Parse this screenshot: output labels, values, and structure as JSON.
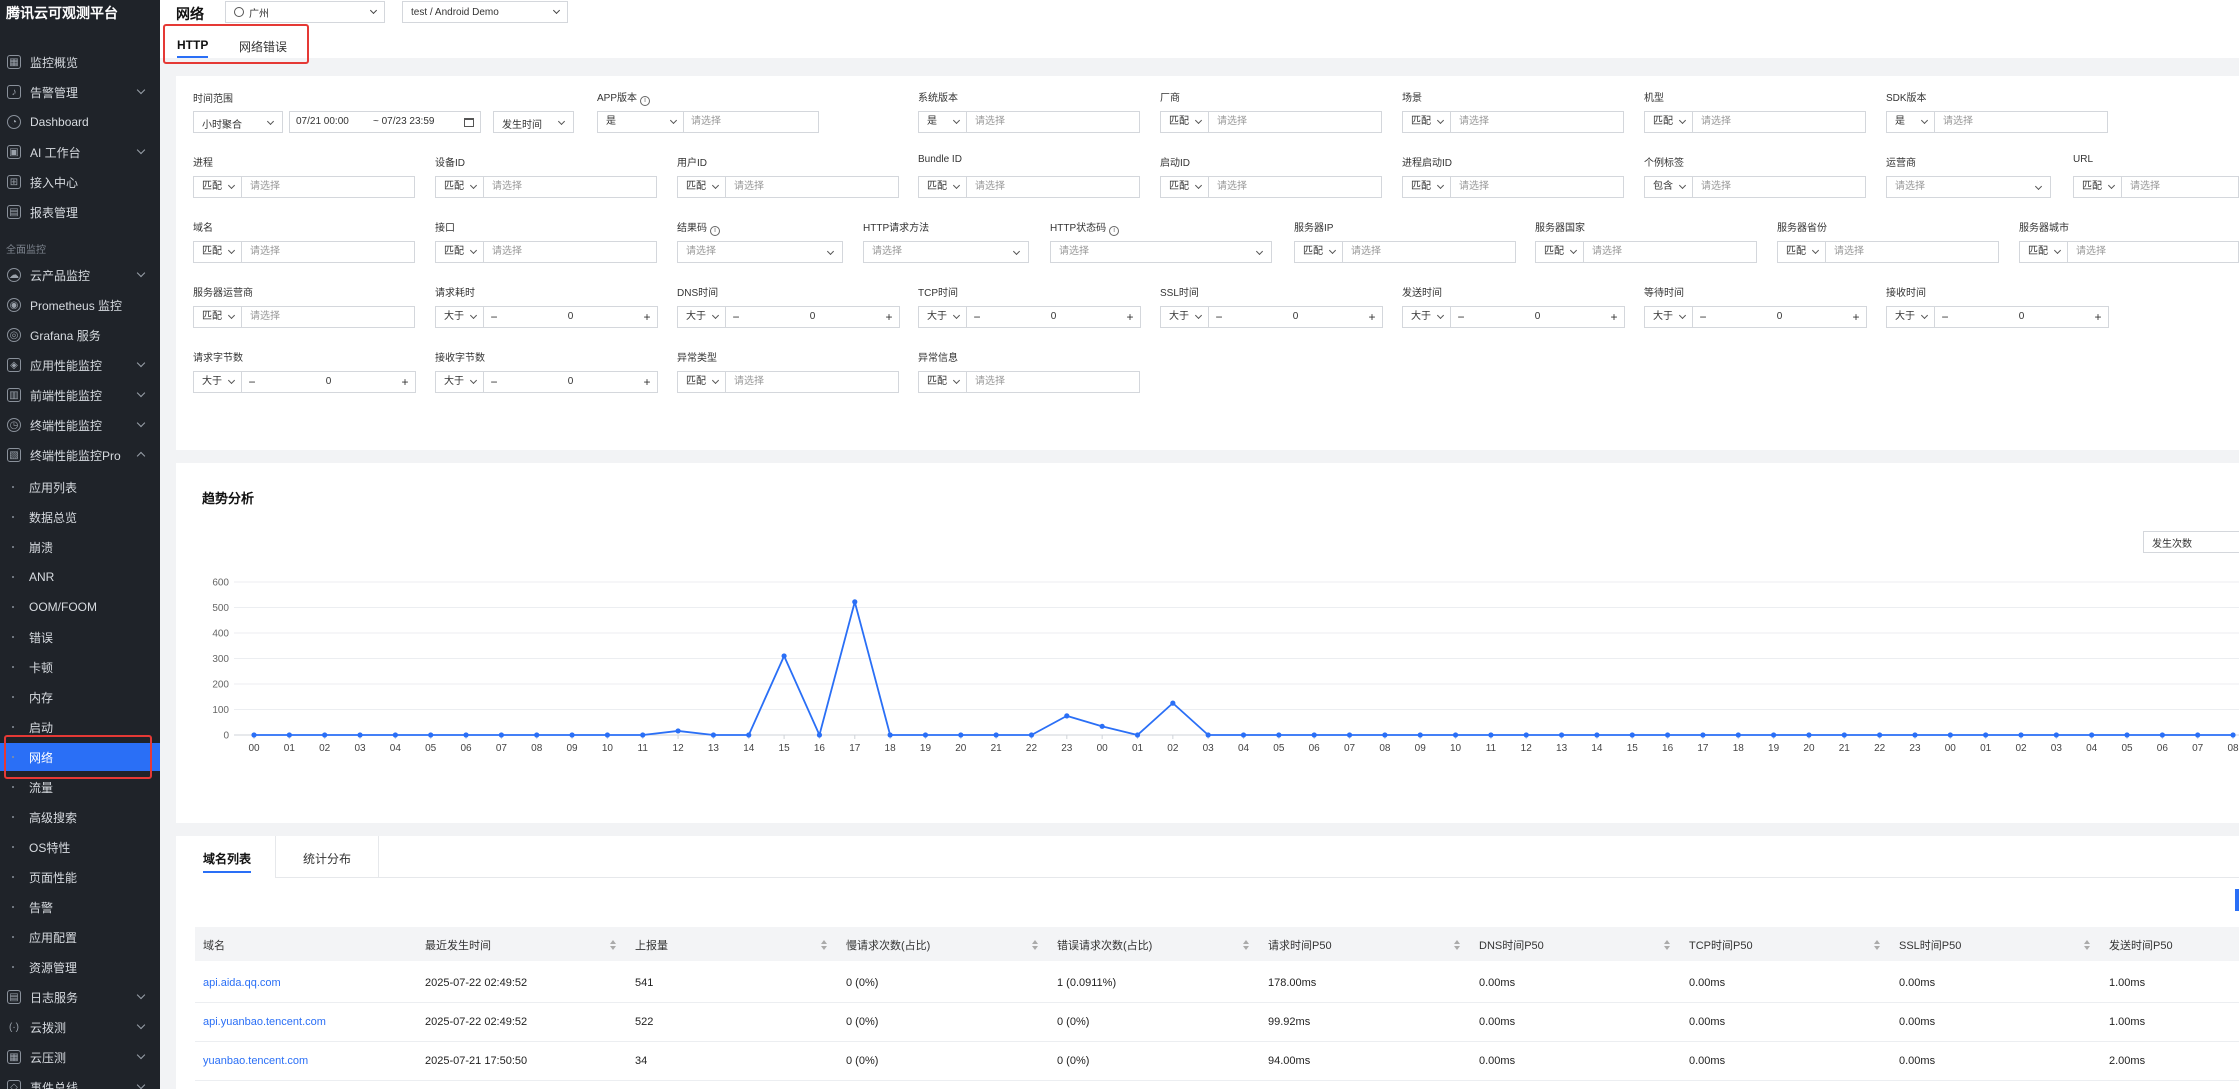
{
  "sidebar": {
    "brand": "腾讯云可观测平台",
    "top_items": [
      {
        "label": "监控概览",
        "icon": "grid-icon",
        "chevron": false
      },
      {
        "label": "告警管理",
        "icon": "bell-icon",
        "chevron": true
      },
      {
        "label": "Dashboard",
        "icon": "dashboard-icon",
        "chevron": false
      },
      {
        "label": "AI 工作台",
        "icon": "ai-icon",
        "chevron": true
      },
      {
        "label": "接入中心",
        "icon": "plug-icon",
        "chevron": false
      },
      {
        "label": "报表管理",
        "icon": "report-icon",
        "chevron": false
      }
    ],
    "group_label": "全面监控",
    "group_items": [
      {
        "label": "云产品监控",
        "icon": "cloud-icon",
        "chevron": true
      },
      {
        "label": "Prometheus 监控",
        "icon": "prometheus-icon",
        "chevron": false
      },
      {
        "label": "Grafana 服务",
        "icon": "grafana-icon",
        "chevron": false
      },
      {
        "label": "应用性能监控",
        "icon": "apm-icon",
        "chevron": true
      },
      {
        "label": "前端性能监控",
        "icon": "frontend-icon",
        "chevron": true
      },
      {
        "label": "终端性能监控",
        "icon": "terminal-icon",
        "chevron": true
      },
      {
        "label": "终端性能监控Pro",
        "icon": "terminal-pro-icon",
        "chevron": true,
        "expanded": true
      }
    ],
    "sub_items": [
      "应用列表",
      "数据总览",
      "崩溃",
      "ANR",
      "OOM/FOOM",
      "错误",
      "卡顿",
      "内存",
      "启动",
      "网络",
      "流量",
      "高级搜索",
      "OS特性",
      "页面性能",
      "告警",
      "应用配置",
      "资源管理"
    ],
    "active_sub": "网络",
    "bottom_items": [
      {
        "label": "日志服务",
        "icon": "log-icon",
        "chevron": true
      },
      {
        "label": "云拨测",
        "icon": "probe-icon",
        "chevron": true
      },
      {
        "label": "云压测",
        "icon": "pressure-icon",
        "chevron": true
      },
      {
        "label": "事件总线",
        "icon": "event-icon",
        "chevron": true
      }
    ]
  },
  "header": {
    "title": "网络",
    "region": "广州",
    "app": "test / Android Demo",
    "tabs": [
      "HTTP",
      "网络错误"
    ],
    "active_tab": "HTTP"
  },
  "filters": {
    "time_range": {
      "label": "时间范围",
      "granularity": "小时聚合",
      "start": "07/21 00:00",
      "end": "~ 07/23 23:59",
      "time_type": "发生时间"
    },
    "app_version": {
      "label": "APP版本",
      "op": "是",
      "placeholder": "请选择"
    },
    "os_version": {
      "label": "系统版本",
      "op": "是",
      "placeholder": "请选择"
    },
    "vendor": {
      "label": "厂商",
      "op": "匹配",
      "placeholder": "请选择"
    },
    "scene": {
      "label": "场景",
      "op": "匹配",
      "placeholder": "请选择"
    },
    "model": {
      "label": "机型",
      "op": "匹配",
      "placeholder": "请选择"
    },
    "sdk_version": {
      "label": "SDK版本",
      "op": "是",
      "placeholder": "请选择"
    },
    "process": {
      "label": "进程",
      "op": "匹配",
      "placeholder": "请选择"
    },
    "device_id": {
      "label": "设备ID",
      "op": "匹配",
      "placeholder": "请选择"
    },
    "user_id": {
      "label": "用户ID",
      "op": "匹配",
      "placeholder": "请选择"
    },
    "bundle_id": {
      "label": "Bundle ID",
      "op": "匹配",
      "placeholder": "请选择"
    },
    "launch_id": {
      "label": "启动ID",
      "op": "匹配",
      "placeholder": "请选择"
    },
    "process_launch_id": {
      "label": "进程启动ID",
      "op": "匹配",
      "placeholder": "请选择"
    },
    "custom_tag": {
      "label": "个例标签",
      "op": "包含",
      "placeholder": "请选择"
    },
    "carrier": {
      "label": "运营商",
      "placeholder": "请选择"
    },
    "url": {
      "label": "URL",
      "op": "匹配",
      "placeholder": "请选择"
    },
    "domain": {
      "label": "域名",
      "op": "匹配",
      "placeholder": "请选择"
    },
    "api": {
      "label": "接口",
      "op": "匹配",
      "placeholder": "请选择"
    },
    "result_code": {
      "label": "结果码",
      "placeholder": "请选择"
    },
    "http_method": {
      "label": "HTTP请求方法",
      "placeholder": "请选择"
    },
    "http_status": {
      "label": "HTTP状态码",
      "placeholder": "请选择"
    },
    "server_ip": {
      "label": "服务器IP",
      "op": "匹配",
      "placeholder": "请选择"
    },
    "server_country": {
      "label": "服务器国家",
      "op": "匹配",
      "placeholder": "请选择"
    },
    "server_province": {
      "label": "服务器省份",
      "op": "匹配",
      "placeholder": "请选择"
    },
    "server_city": {
      "label": "服务器城市",
      "op": "匹配",
      "placeholder": "请选择"
    },
    "server_isp": {
      "label": "服务器运营商",
      "op": "匹配",
      "placeholder": "请选择"
    },
    "request_time": {
      "label": "请求耗时",
      "op": "大于",
      "value": "0"
    },
    "dns_time": {
      "label": "DNS时间",
      "op": "大于",
      "value": "0"
    },
    "tcp_time": {
      "label": "TCP时间",
      "op": "大于",
      "value": "0"
    },
    "ssl_time": {
      "label": "SSL时间",
      "op": "大于",
      "value": "0"
    },
    "send_time": {
      "label": "发送时间",
      "op": "大于",
      "value": "0"
    },
    "wait_time": {
      "label": "等待时间",
      "op": "大于",
      "value": "0"
    },
    "receive_time": {
      "label": "接收时间",
      "op": "大于",
      "value": "0"
    },
    "request_bytes": {
      "label": "请求字节数",
      "op": "大于",
      "value": "0"
    },
    "response_bytes": {
      "label": "接收字节数",
      "op": "大于",
      "value": "0"
    },
    "exception_type": {
      "label": "异常类型",
      "op": "匹配",
      "placeholder": "请选择"
    },
    "exception_info": {
      "label": "异常信息",
      "op": "匹配",
      "placeholder": "请选择"
    }
  },
  "trend": {
    "title": "趋势分析",
    "metric_select": "发生次数"
  },
  "chart_data": {
    "type": "line",
    "title": "趋势分析",
    "xlabel": "",
    "ylabel": "",
    "ylim": [
      0,
      600
    ],
    "yticks": [
      0,
      100,
      200,
      300,
      400,
      500,
      600
    ],
    "grid": true,
    "categories": [
      "00",
      "01",
      "02",
      "03",
      "04",
      "05",
      "06",
      "07",
      "08",
      "09",
      "10",
      "11",
      "12",
      "13",
      "14",
      "15",
      "16",
      "17",
      "18",
      "19",
      "20",
      "21",
      "22",
      "23",
      "00",
      "01",
      "02",
      "03",
      "04",
      "05",
      "06",
      "07",
      "08",
      "09",
      "10",
      "11",
      "12",
      "13",
      "14",
      "15",
      "16",
      "17",
      "18",
      "19",
      "20",
      "21",
      "22",
      "23",
      "00",
      "01",
      "02",
      "03",
      "04",
      "05",
      "06",
      "07",
      "08"
    ],
    "series": [
      {
        "color": "#2a6ff6",
        "values": [
          0,
          0,
          0,
          0,
          0,
          0,
          0,
          0,
          0,
          0,
          0,
          0,
          16,
          0,
          0,
          310,
          0,
          522,
          0,
          0,
          0,
          0,
          0,
          75,
          34,
          0,
          125,
          0,
          0,
          0,
          0,
          0,
          0,
          0,
          0,
          0,
          0,
          0,
          0,
          0,
          0,
          0,
          0,
          0,
          0,
          0,
          0,
          0,
          0,
          0,
          0,
          0,
          0,
          0,
          0,
          0,
          0
        ]
      }
    ]
  },
  "domain_list": {
    "tabs": [
      "域名列表",
      "统计分布"
    ],
    "active_tab": "域名列表",
    "columns": [
      "域名",
      "最近发生时间",
      "上报量",
      "慢请求次数(占比)",
      "错误请求次数(占比)",
      "请求时间P50",
      "DNS时间P50",
      "TCP时间P50",
      "SSL时间P50",
      "发送时间P50"
    ],
    "rows": [
      [
        "api.aida.qq.com",
        "2025-07-22 02:49:52",
        "541",
        "0  (0%)",
        "1  (0.0911%)",
        "178.00ms",
        "0.00ms",
        "0.00ms",
        "0.00ms",
        "1.00ms"
      ],
      [
        "api.yuanbao.tencent.com",
        "2025-07-22 02:49:52",
        "522",
        "0  (0%)",
        "0  (0%)",
        "99.92ms",
        "0.00ms",
        "0.00ms",
        "0.00ms",
        "1.00ms"
      ],
      [
        "yuanbao.tencent.com",
        "2025-07-21 17:50:50",
        "34",
        "0  (0%)",
        "0  (0%)",
        "94.00ms",
        "0.00ms",
        "0.00ms",
        "0.00ms",
        "2.00ms"
      ]
    ]
  },
  "colors": {
    "accent": "#2a6ff6",
    "highlight": "#e53935",
    "sidebar_bg": "#1f2329"
  }
}
